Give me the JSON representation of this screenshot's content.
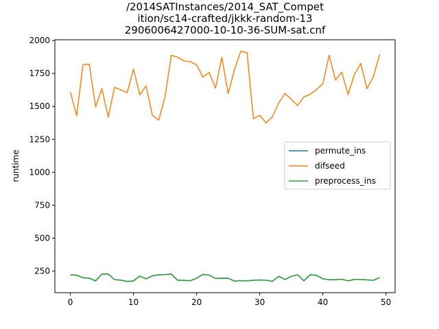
{
  "chart_data": {
    "type": "line",
    "title_lines": [
      "/2014SATInstances/2014_SAT_Compet",
      "ition/sc14-crafted/jkkk-random-13",
      "2906006427000-10-10-36-SUM-sat.cnf"
    ],
    "xlabel": "",
    "ylabel": "runtime",
    "xlim": [
      -2.45,
      51.45
    ],
    "ylim": [
      86,
      2006
    ],
    "xticks": [
      0,
      10,
      20,
      30,
      40,
      50
    ],
    "yticks": [
      250,
      500,
      750,
      1000,
      1250,
      1500,
      1750,
      2000
    ],
    "grid": false,
    "legend_position": "center-right",
    "x": [
      0,
      1,
      2,
      3,
      4,
      5,
      6,
      7,
      8,
      9,
      10,
      11,
      12,
      13,
      14,
      15,
      16,
      17,
      18,
      19,
      20,
      21,
      22,
      23,
      24,
      25,
      26,
      27,
      28,
      29,
      30,
      31,
      32,
      33,
      34,
      35,
      36,
      37,
      38,
      39,
      40,
      41,
      42,
      43,
      44,
      45,
      46,
      47,
      48,
      49
    ],
    "series": [
      {
        "name": "permute_ins",
        "color": "#1f77b4",
        "values": [
          222,
          219,
          199,
          196,
          175,
          227,
          228,
          185,
          181,
          171,
          175,
          212,
          191,
          214,
          221,
          223,
          227,
          180,
          180,
          176,
          196,
          225,
          219,
          194,
          196,
          195,
          174,
          177,
          175,
          180,
          182,
          181,
          172,
          210,
          185,
          210,
          222,
          176,
          222,
          218,
          191,
          184,
          184,
          188,
          176,
          187,
          186,
          183,
          180,
          200
        ]
      },
      {
        "name": "difseed",
        "color": "#ff7f0e",
        "values": [
          1608,
          1430,
          1818,
          1820,
          1497,
          1636,
          1419,
          1645,
          1625,
          1605,
          1782,
          1588,
          1656,
          1432,
          1396,
          1573,
          1888,
          1873,
          1845,
          1840,
          1816,
          1722,
          1758,
          1638,
          1873,
          1597,
          1780,
          1918,
          1908,
          1407,
          1432,
          1375,
          1420,
          1526,
          1598,
          1553,
          1507,
          1572,
          1592,
          1628,
          1672,
          1889,
          1700,
          1760,
          1590,
          1743,
          1826,
          1634,
          1725,
          1895
        ]
      },
      {
        "name": "preprocess_ins",
        "color": "#2ca02c",
        "values": [
          222,
          219,
          199,
          196,
          175,
          227,
          228,
          185,
          181,
          171,
          175,
          212,
          191,
          214,
          221,
          223,
          227,
          180,
          180,
          176,
          196,
          225,
          219,
          194,
          196,
          195,
          174,
          177,
          175,
          180,
          182,
          181,
          172,
          210,
          185,
          210,
          222,
          176,
          222,
          218,
          191,
          184,
          184,
          188,
          176,
          187,
          186,
          183,
          180,
          200
        ]
      }
    ]
  }
}
